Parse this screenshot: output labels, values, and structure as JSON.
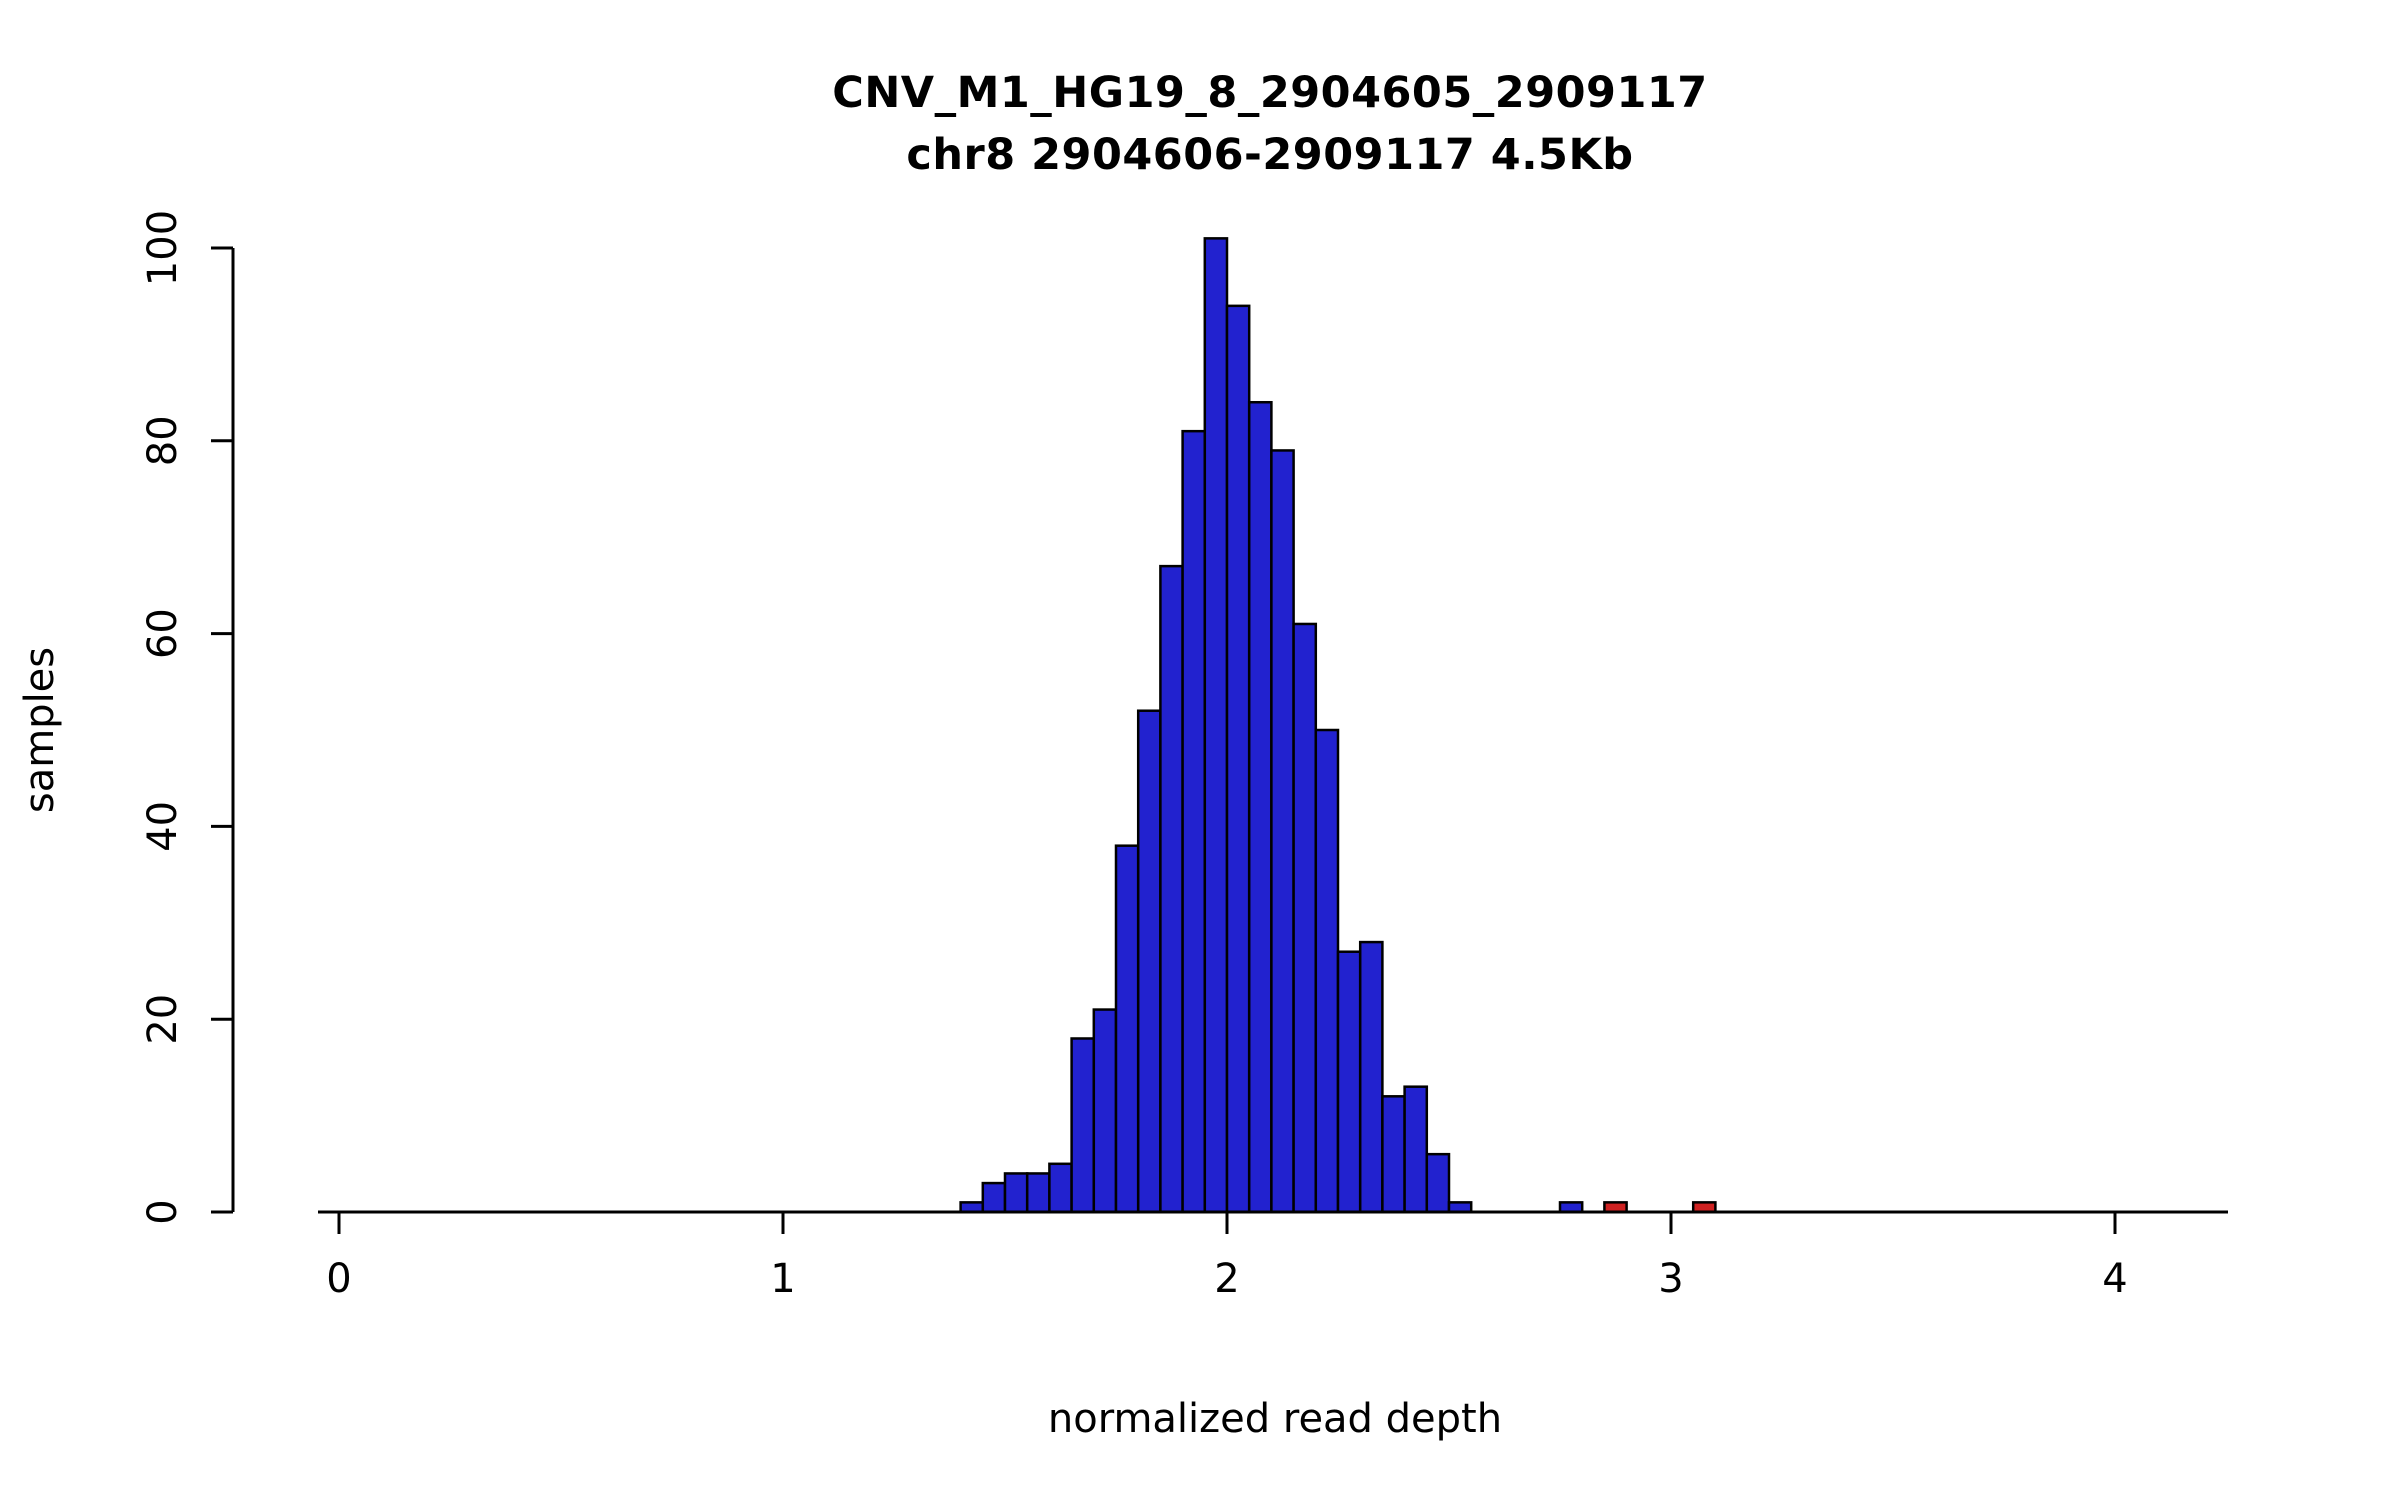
{
  "page": {
    "background": "#ffffff"
  },
  "chart_data": {
    "type": "bar",
    "subtype": "histogram",
    "title": "CNV_M1_HG19_8_2904605_2909117",
    "subtitle": "chr8 2904606-2909117 4.5Kb",
    "xlabel": "normalized read depth",
    "ylabel": "samples",
    "xlim": [
      0,
      4.25
    ],
    "ylim": [
      0,
      101
    ],
    "x_ticks": [
      0,
      1,
      2,
      3,
      4
    ],
    "y_ticks": [
      0,
      20,
      40,
      60,
      80,
      100
    ],
    "bin_width": 0.05,
    "grid": false,
    "legend": "none",
    "colors": {
      "blue": "#2222cf",
      "red": "#cf2222",
      "border": "#000000",
      "axis": "#000000"
    },
    "bars": [
      {
        "x": 1.4,
        "count": 1,
        "color": "blue"
      },
      {
        "x": 1.45,
        "count": 3,
        "color": "blue"
      },
      {
        "x": 1.5,
        "count": 4,
        "color": "blue"
      },
      {
        "x": 1.55,
        "count": 4,
        "color": "blue"
      },
      {
        "x": 1.6,
        "count": 5,
        "color": "blue"
      },
      {
        "x": 1.65,
        "count": 18,
        "color": "blue"
      },
      {
        "x": 1.7,
        "count": 21,
        "color": "blue"
      },
      {
        "x": 1.75,
        "count": 38,
        "color": "blue"
      },
      {
        "x": 1.8,
        "count": 52,
        "color": "blue"
      },
      {
        "x": 1.85,
        "count": 67,
        "color": "blue"
      },
      {
        "x": 1.9,
        "count": 81,
        "color": "blue"
      },
      {
        "x": 1.95,
        "count": 101,
        "color": "blue"
      },
      {
        "x": 2.0,
        "count": 94,
        "color": "blue"
      },
      {
        "x": 2.05,
        "count": 84,
        "color": "blue"
      },
      {
        "x": 2.1,
        "count": 79,
        "color": "blue"
      },
      {
        "x": 2.15,
        "count": 61,
        "color": "blue"
      },
      {
        "x": 2.2,
        "count": 50,
        "color": "blue"
      },
      {
        "x": 2.25,
        "count": 27,
        "color": "blue"
      },
      {
        "x": 2.3,
        "count": 28,
        "color": "blue"
      },
      {
        "x": 2.35,
        "count": 12,
        "color": "blue"
      },
      {
        "x": 2.4,
        "count": 13,
        "color": "blue"
      },
      {
        "x": 2.45,
        "count": 6,
        "color": "blue"
      },
      {
        "x": 2.5,
        "count": 1,
        "color": "blue"
      },
      {
        "x": 2.75,
        "count": 1,
        "color": "blue"
      },
      {
        "x": 2.85,
        "count": 1,
        "color": "red"
      },
      {
        "x": 3.05,
        "count": 1,
        "color": "red"
      }
    ]
  }
}
